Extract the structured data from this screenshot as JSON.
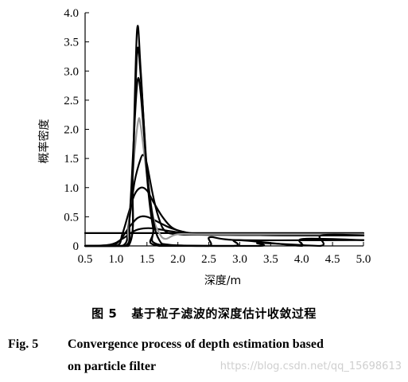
{
  "chart_data": {
    "type": "line",
    "title": "",
    "xlabel": "深度/m",
    "ylabel": "概率密度",
    "xlim": [
      0.5,
      5.0
    ],
    "ylim": [
      0,
      4.0
    ],
    "x_ticks": [
      "0.5",
      "1.0",
      "1.5",
      "2.0",
      "2.5",
      "3.0",
      "3.5",
      "4.0",
      "4.5",
      "5.0"
    ],
    "y_ticks": [
      "0",
      "0.5",
      "1.0",
      "1.5",
      "2.0",
      "2.5",
      "3.0",
      "3.5",
      "4.0"
    ],
    "grid": false,
    "legend": "none",
    "series": [
      {
        "color": "#000000",
        "points": [
          [
            0.5,
            0.22
          ],
          [
            5.0,
            0.22
          ]
        ]
      },
      {
        "color": "#000000",
        "points": [
          [
            0.5,
            0.0
          ],
          [
            0.9,
            0.02
          ],
          [
            1.1,
            0.12
          ],
          [
            1.3,
            0.26
          ],
          [
            1.45,
            0.3
          ],
          [
            1.6,
            0.3
          ],
          [
            1.9,
            0.25
          ],
          [
            2.2,
            0.21
          ],
          [
            3.0,
            0.19
          ],
          [
            4.0,
            0.18
          ],
          [
            5.0,
            0.18
          ]
        ]
      },
      {
        "color": "#000000",
        "points": [
          [
            0.5,
            0.0
          ],
          [
            0.9,
            0.0
          ],
          [
            1.05,
            0.08
          ],
          [
            1.2,
            0.3
          ],
          [
            1.35,
            0.48
          ],
          [
            1.5,
            0.5
          ],
          [
            1.7,
            0.4
          ],
          [
            1.9,
            0.3
          ],
          [
            2.2,
            0.22
          ],
          [
            2.6,
            0.2
          ],
          [
            3.0,
            0.19
          ],
          [
            4.0,
            0.18
          ],
          [
            5.0,
            0.18
          ]
        ]
      },
      {
        "color": "#000000",
        "points": [
          [
            0.5,
            0.0
          ],
          [
            1.0,
            0.0
          ],
          [
            1.1,
            0.2
          ],
          [
            1.2,
            0.55
          ],
          [
            1.3,
            0.88
          ],
          [
            1.4,
            1.0
          ],
          [
            1.5,
            0.95
          ],
          [
            1.6,
            0.76
          ],
          [
            1.75,
            0.5
          ],
          [
            1.9,
            0.32
          ],
          [
            2.1,
            0.24
          ],
          [
            2.5,
            0.2
          ],
          [
            5.0,
            0.18
          ]
        ]
      },
      {
        "color": "#000000",
        "points": [
          [
            0.5,
            0.0
          ],
          [
            1.1,
            0.0
          ],
          [
            1.2,
            0.35
          ],
          [
            1.3,
            1.1
          ],
          [
            1.4,
            1.5
          ],
          [
            1.45,
            1.55
          ],
          [
            1.5,
            1.4
          ],
          [
            1.6,
            0.85
          ],
          [
            1.7,
            0.45
          ],
          [
            1.8,
            0.25
          ],
          [
            2.0,
            0.2
          ],
          [
            2.5,
            0.19
          ],
          [
            5.0,
            0.18
          ]
        ]
      },
      {
        "color": "#9a9a9a",
        "points": [
          [
            0.5,
            0.0
          ],
          [
            1.15,
            0.0
          ],
          [
            1.2,
            0.3
          ],
          [
            1.3,
            1.6
          ],
          [
            1.36,
            2.15
          ],
          [
            1.4,
            2.05
          ],
          [
            1.5,
            1.2
          ],
          [
            1.6,
            0.5
          ],
          [
            1.7,
            0.22
          ],
          [
            1.8,
            0.12
          ],
          [
            2.0,
            0.2
          ],
          [
            2.5,
            0.2
          ],
          [
            5.0,
            0.2
          ]
        ]
      },
      {
        "color": "#000000",
        "points": [
          [
            0.5,
            0.0
          ],
          [
            1.15,
            0.0
          ],
          [
            1.22,
            0.5
          ],
          [
            1.3,
            2.1
          ],
          [
            1.35,
            2.85
          ],
          [
            1.4,
            2.6
          ],
          [
            1.5,
            1.3
          ],
          [
            1.6,
            0.45
          ],
          [
            1.7,
            0.1
          ],
          [
            1.85,
            0.02
          ],
          [
            2.5,
            0.0
          ],
          [
            2.52,
            0.15
          ],
          [
            3.0,
            0.1
          ],
          [
            5.0,
            0.1
          ]
        ]
      },
      {
        "color": "#000000",
        "points": [
          [
            0.5,
            0.0
          ],
          [
            1.2,
            0.0
          ],
          [
            1.27,
            1.2
          ],
          [
            1.34,
            3.3
          ],
          [
            1.4,
            2.9
          ],
          [
            1.5,
            1.3
          ],
          [
            1.6,
            0.35
          ],
          [
            1.7,
            0.02
          ],
          [
            2.9,
            0.0
          ],
          [
            2.92,
            0.1
          ],
          [
            3.5,
            0.05
          ],
          [
            4.0,
            0.0
          ],
          [
            4.02,
            0.12
          ],
          [
            5.0,
            0.1
          ]
        ]
      },
      {
        "color": "#000000",
        "points": [
          [
            0.5,
            0.0
          ],
          [
            1.2,
            0.0
          ],
          [
            1.27,
            1.3
          ],
          [
            1.34,
            3.7
          ],
          [
            1.4,
            3.0
          ],
          [
            1.5,
            1.2
          ],
          [
            1.6,
            0.3
          ],
          [
            1.7,
            0.0
          ],
          [
            3.3,
            0.0
          ],
          [
            3.32,
            0.05
          ],
          [
            4.3,
            0.0
          ],
          [
            4.32,
            0.18
          ],
          [
            5.0,
            0.18
          ]
        ]
      }
    ]
  },
  "caption": {
    "cn_fig_no": "图 5",
    "cn_title": "基于粒子滤波的深度估计收敛过程",
    "en_fig_no": "Fig. 5",
    "en_line1": "Convergence process of depth estimation based",
    "en_line2": "on particle filter"
  },
  "watermark": "https://blog.csdn.net/qq_15698613"
}
